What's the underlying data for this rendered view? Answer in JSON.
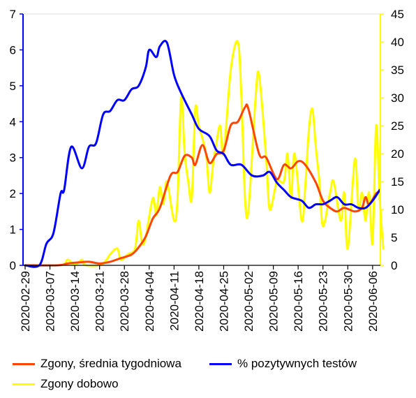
{
  "chart_data": {
    "type": "line",
    "x": {
      "start": "2020-02-29",
      "end": "2020-06-07",
      "tick_labels": [
        "2020-02-29",
        "2020-03-07",
        "2020-03-14",
        "2020-03-21",
        "2020-03-28",
        "2020-04-04",
        "2020-04-11",
        "2020-04-18",
        "2020-04-25",
        "2020-05-02",
        "2020-05-09",
        "2020-05-16",
        "2020-05-23",
        "2020-05-30",
        "2020-06-06"
      ]
    },
    "y_left": {
      "ylim": [
        0,
        7
      ],
      "ticks": [
        "0",
        "1",
        "2",
        "3",
        "4",
        "5",
        "6",
        "7"
      ],
      "color": "#0000ff"
    },
    "y_right": {
      "ylim": [
        0,
        45
      ],
      "ticks": [
        "0",
        "5",
        "10",
        "15",
        "20",
        "25",
        "30",
        "35",
        "40",
        "45"
      ],
      "color": "#ffff00"
    },
    "grid": false,
    "legend_position": "bottom",
    "series": [
      {
        "name": "Zgony, średnia tygodniowa",
        "color": "#ff4500",
        "axis": "left",
        "points": [
          [
            "2020-02-29",
            0
          ],
          [
            "2020-03-09",
            0
          ],
          [
            "2020-03-12",
            0.05
          ],
          [
            "2020-03-15",
            0.08
          ],
          [
            "2020-03-18",
            0.1
          ],
          [
            "2020-03-21",
            0.05
          ],
          [
            "2020-03-24",
            0.1
          ],
          [
            "2020-03-27",
            0.2
          ],
          [
            "2020-03-30",
            0.3
          ],
          [
            "2020-04-01",
            0.5
          ],
          [
            "2020-04-03",
            0.8
          ],
          [
            "2020-04-05",
            1.3
          ],
          [
            "2020-04-07",
            1.6
          ],
          [
            "2020-04-10",
            2.5
          ],
          [
            "2020-04-12",
            2.6
          ],
          [
            "2020-04-14",
            3.05
          ],
          [
            "2020-04-16",
            3.0
          ],
          [
            "2020-04-17",
            2.8
          ],
          [
            "2020-04-19",
            3.35
          ],
          [
            "2020-04-21",
            2.85
          ],
          [
            "2020-04-23",
            3.1
          ],
          [
            "2020-04-25",
            3.2
          ],
          [
            "2020-04-27",
            3.9
          ],
          [
            "2020-04-29",
            4.0
          ],
          [
            "2020-05-01",
            4.4
          ],
          [
            "2020-05-02",
            4.35
          ],
          [
            "2020-05-05",
            3.1
          ],
          [
            "2020-05-07",
            3.0
          ],
          [
            "2020-05-10",
            2.4
          ],
          [
            "2020-05-12",
            2.8
          ],
          [
            "2020-05-14",
            2.7
          ],
          [
            "2020-05-16",
            2.9
          ],
          [
            "2020-05-18",
            2.8
          ],
          [
            "2020-05-21",
            2.3
          ],
          [
            "2020-05-23",
            1.8
          ],
          [
            "2020-05-25",
            1.6
          ],
          [
            "2020-05-27",
            1.5
          ],
          [
            "2020-05-29",
            1.6
          ],
          [
            "2020-06-01",
            1.5
          ],
          [
            "2020-06-03",
            1.6
          ],
          [
            "2020-06-04",
            1.9
          ],
          [
            "2020-06-05",
            1.7
          ],
          [
            "2020-06-07",
            2.0
          ],
          [
            "2020-06-08",
            2.05
          ]
        ]
      },
      {
        "name": "% pozytywnych testów",
        "color": "#0000ff",
        "axis": "left",
        "points": [
          [
            "2020-02-29",
            0
          ],
          [
            "2020-03-04",
            0
          ],
          [
            "2020-03-06",
            0.6
          ],
          [
            "2020-03-08",
            0.9
          ],
          [
            "2020-03-10",
            2.0
          ],
          [
            "2020-03-11",
            2.1
          ],
          [
            "2020-03-13",
            3.3
          ],
          [
            "2020-03-16",
            2.7
          ],
          [
            "2020-03-18",
            3.3
          ],
          [
            "2020-03-20",
            3.4
          ],
          [
            "2020-03-22",
            4.2
          ],
          [
            "2020-03-24",
            4.3
          ],
          [
            "2020-03-26",
            4.6
          ],
          [
            "2020-03-28",
            4.6
          ],
          [
            "2020-03-30",
            4.9
          ],
          [
            "2020-04-01",
            5.0
          ],
          [
            "2020-04-03",
            5.5
          ],
          [
            "2020-04-04",
            6.0
          ],
          [
            "2020-04-06",
            5.8
          ],
          [
            "2020-04-07",
            6.1
          ],
          [
            "2020-04-09",
            6.2
          ],
          [
            "2020-04-11",
            5.3
          ],
          [
            "2020-04-13",
            4.8
          ],
          [
            "2020-04-16",
            4.2
          ],
          [
            "2020-04-18",
            3.8
          ],
          [
            "2020-04-21",
            3.6
          ],
          [
            "2020-04-23",
            3.2
          ],
          [
            "2020-04-25",
            3.1
          ],
          [
            "2020-04-27",
            2.8
          ],
          [
            "2020-04-30",
            2.8
          ],
          [
            "2020-05-03",
            2.5
          ],
          [
            "2020-05-06",
            2.5
          ],
          [
            "2020-05-08",
            2.6
          ],
          [
            "2020-05-10",
            2.3
          ],
          [
            "2020-05-12",
            2.1
          ],
          [
            "2020-05-14",
            1.9
          ],
          [
            "2020-05-17",
            1.8
          ],
          [
            "2020-05-19",
            1.6
          ],
          [
            "2020-05-21",
            1.7
          ],
          [
            "2020-05-23",
            1.7
          ],
          [
            "2020-05-25",
            1.8
          ],
          [
            "2020-05-27",
            1.9
          ],
          [
            "2020-05-29",
            1.7
          ],
          [
            "2020-05-31",
            1.7
          ],
          [
            "2020-06-02",
            1.6
          ],
          [
            "2020-06-04",
            1.6
          ],
          [
            "2020-06-06",
            1.8
          ],
          [
            "2020-06-08",
            2.1
          ]
        ]
      },
      {
        "name": "Zgony dobowo",
        "color": "#ffff00",
        "axis": "right",
        "points": [
          [
            "2020-02-29",
            0
          ],
          [
            "2020-03-10",
            0
          ],
          [
            "2020-03-12",
            1
          ],
          [
            "2020-03-14",
            0
          ],
          [
            "2020-03-16",
            1
          ],
          [
            "2020-03-17",
            0
          ],
          [
            "2020-03-21",
            0
          ],
          [
            "2020-03-23",
            1
          ],
          [
            "2020-03-24",
            2
          ],
          [
            "2020-03-26",
            3
          ],
          [
            "2020-03-27",
            1
          ],
          [
            "2020-03-29",
            2
          ],
          [
            "2020-03-31",
            3
          ],
          [
            "2020-04-01",
            8
          ],
          [
            "2020-04-02",
            4
          ],
          [
            "2020-04-03",
            5
          ],
          [
            "2020-04-05",
            12
          ],
          [
            "2020-04-06",
            9
          ],
          [
            "2020-04-07",
            14
          ],
          [
            "2020-04-08",
            11
          ],
          [
            "2020-04-09",
            15
          ],
          [
            "2020-04-11",
            8
          ],
          [
            "2020-04-12",
            12
          ],
          [
            "2020-04-13",
            30
          ],
          [
            "2020-04-14",
            20
          ],
          [
            "2020-04-15",
            15
          ],
          [
            "2020-04-16",
            12
          ],
          [
            "2020-04-17",
            28
          ],
          [
            "2020-04-18",
            25
          ],
          [
            "2020-04-20",
            20
          ],
          [
            "2020-04-21",
            13
          ],
          [
            "2020-04-22",
            18
          ],
          [
            "2020-04-23",
            22
          ],
          [
            "2020-04-24",
            25
          ],
          [
            "2020-04-25",
            20
          ],
          [
            "2020-04-27",
            35
          ],
          [
            "2020-04-29",
            40
          ],
          [
            "2020-04-30",
            30
          ],
          [
            "2020-05-01",
            12
          ],
          [
            "2020-05-02",
            10
          ],
          [
            "2020-05-04",
            30
          ],
          [
            "2020-05-05",
            34
          ],
          [
            "2020-05-07",
            19
          ],
          [
            "2020-05-08",
            10
          ],
          [
            "2020-05-10",
            15
          ],
          [
            "2020-05-12",
            15
          ],
          [
            "2020-05-13",
            20
          ],
          [
            "2020-05-14",
            12
          ],
          [
            "2020-05-15",
            20
          ],
          [
            "2020-05-17",
            8
          ],
          [
            "2020-05-18",
            14
          ],
          [
            "2020-05-19",
            24
          ],
          [
            "2020-05-20",
            28
          ],
          [
            "2020-05-21",
            21
          ],
          [
            "2020-05-22",
            15
          ],
          [
            "2020-05-23",
            7
          ],
          [
            "2020-05-25",
            13
          ],
          [
            "2020-05-26",
            15
          ],
          [
            "2020-05-28",
            8
          ],
          [
            "2020-05-29",
            13
          ],
          [
            "2020-05-30",
            3
          ],
          [
            "2020-06-01",
            19
          ],
          [
            "2020-06-02",
            10
          ],
          [
            "2020-06-03",
            13
          ],
          [
            "2020-06-04",
            8
          ],
          [
            "2020-06-05",
            13
          ],
          [
            "2020-06-06",
            4
          ],
          [
            "2020-06-07",
            25
          ],
          [
            "2020-06-08",
            12
          ],
          [
            "2020-06-09",
            3
          ]
        ]
      }
    ]
  }
}
